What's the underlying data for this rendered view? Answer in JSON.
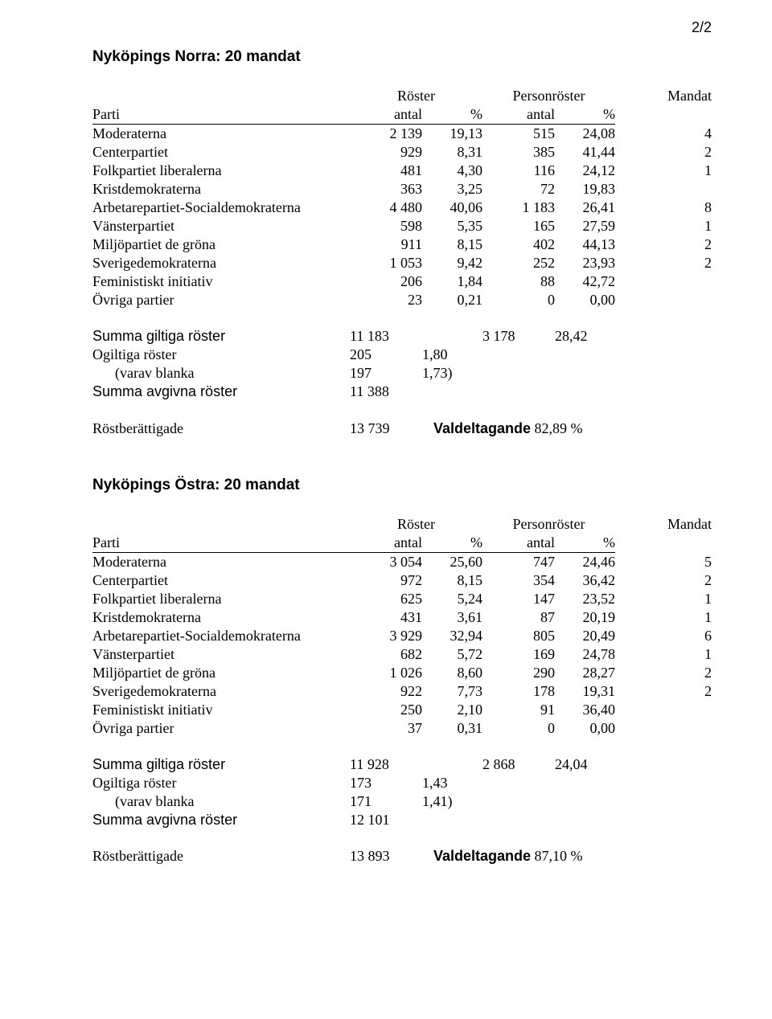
{
  "page_number": "2/2",
  "sections": [
    {
      "title": "Nyköpings Norra: 20 mandat",
      "headers": {
        "parti": "Parti",
        "roster": "Röster",
        "personroster": "Personröster",
        "mandat": "Mandat",
        "antal": "antal",
        "pct": "%"
      },
      "rows": [
        {
          "party": "Moderaterna",
          "ra": "2 139",
          "rp": "19,13",
          "pa": "515",
          "pp": "24,08",
          "m": "4"
        },
        {
          "party": "Centerpartiet",
          "ra": "929",
          "rp": "8,31",
          "pa": "385",
          "pp": "41,44",
          "m": "2"
        },
        {
          "party": "Folkpartiet liberalerna",
          "ra": "481",
          "rp": "4,30",
          "pa": "116",
          "pp": "24,12",
          "m": "1"
        },
        {
          "party": "Kristdemokraterna",
          "ra": "363",
          "rp": "3,25",
          "pa": "72",
          "pp": "19,83",
          "m": ""
        },
        {
          "party": "Arbetarepartiet-Socialdemokraterna",
          "ra": "4 480",
          "rp": "40,06",
          "pa": "1 183",
          "pp": "26,41",
          "m": "8"
        },
        {
          "party": "Vänsterpartiet",
          "ra": "598",
          "rp": "5,35",
          "pa": "165",
          "pp": "27,59",
          "m": "1"
        },
        {
          "party": "Miljöpartiet de gröna",
          "ra": "911",
          "rp": "8,15",
          "pa": "402",
          "pp": "44,13",
          "m": "2"
        },
        {
          "party": "Sverigedemokraterna",
          "ra": "1 053",
          "rp": "9,42",
          "pa": "252",
          "pp": "23,93",
          "m": "2"
        },
        {
          "party": "Feministiskt initiativ",
          "ra": "206",
          "rp": "1,84",
          "pa": "88",
          "pp": "42,72",
          "m": ""
        },
        {
          "party": "Övriga partier",
          "ra": "23",
          "rp": "0,21",
          "pa": "0",
          "pp": "0,00",
          "m": ""
        }
      ],
      "summary": {
        "giltiga_label": "Summa giltiga röster",
        "giltiga_ra": "11 183",
        "giltiga_pa": "3 178",
        "giltiga_pp": "28,42",
        "ogiltiga_label": "Ogiltiga röster",
        "ogiltiga_ra": "205",
        "ogiltiga_rp": "1,80",
        "blanka_label": "(varav blanka",
        "blanka_ra": "197",
        "blanka_rp": "1,73)",
        "avgivna_label": "Summa avgivna röster",
        "avgivna_ra": "11 388",
        "rost_label": "Röstberättigade",
        "rost_ra": "13 739",
        "valdel_label": "Valdeltagande",
        "valdel_val": "82,89 %"
      }
    },
    {
      "title": "Nyköpings Östra: 20 mandat",
      "headers": {
        "parti": "Parti",
        "roster": "Röster",
        "personroster": "Personröster",
        "mandat": "Mandat",
        "antal": "antal",
        "pct": "%"
      },
      "rows": [
        {
          "party": "Moderaterna",
          "ra": "3 054",
          "rp": "25,60",
          "pa": "747",
          "pp": "24,46",
          "m": "5"
        },
        {
          "party": "Centerpartiet",
          "ra": "972",
          "rp": "8,15",
          "pa": "354",
          "pp": "36,42",
          "m": "2"
        },
        {
          "party": "Folkpartiet liberalerna",
          "ra": "625",
          "rp": "5,24",
          "pa": "147",
          "pp": "23,52",
          "m": "1"
        },
        {
          "party": "Kristdemokraterna",
          "ra": "431",
          "rp": "3,61",
          "pa": "87",
          "pp": "20,19",
          "m": "1"
        },
        {
          "party": "Arbetarepartiet-Socialdemokraterna",
          "ra": "3 929",
          "rp": "32,94",
          "pa": "805",
          "pp": "20,49",
          "m": "6"
        },
        {
          "party": "Vänsterpartiet",
          "ra": "682",
          "rp": "5,72",
          "pa": "169",
          "pp": "24,78",
          "m": "1"
        },
        {
          "party": "Miljöpartiet de gröna",
          "ra": "1 026",
          "rp": "8,60",
          "pa": "290",
          "pp": "28,27",
          "m": "2"
        },
        {
          "party": "Sverigedemokraterna",
          "ra": "922",
          "rp": "7,73",
          "pa": "178",
          "pp": "19,31",
          "m": "2"
        },
        {
          "party": "Feministiskt initiativ",
          "ra": "250",
          "rp": "2,10",
          "pa": "91",
          "pp": "36,40",
          "m": ""
        },
        {
          "party": "Övriga partier",
          "ra": "37",
          "rp": "0,31",
          "pa": "0",
          "pp": "0,00",
          "m": ""
        }
      ],
      "summary": {
        "giltiga_label": "Summa giltiga röster",
        "giltiga_ra": "11 928",
        "giltiga_pa": "2 868",
        "giltiga_pp": "24,04",
        "ogiltiga_label": "Ogiltiga röster",
        "ogiltiga_ra": "173",
        "ogiltiga_rp": "1,43",
        "blanka_label": "(varav blanka",
        "blanka_ra": "171",
        "blanka_rp": "1,41)",
        "avgivna_label": "Summa avgivna röster",
        "avgivna_ra": "12 101",
        "rost_label": "Röstberättigade",
        "rost_ra": "13 893",
        "valdel_label": "Valdeltagande",
        "valdel_val": "87,10 %"
      }
    }
  ]
}
